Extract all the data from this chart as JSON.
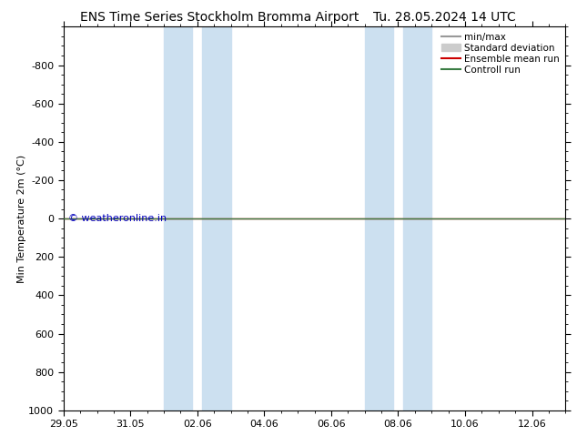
{
  "title_left": "ENS Time Series Stockholm Bromma Airport",
  "title_right": "Tu. 28.05.2024 14 UTC",
  "ylabel": "Min Temperature 2m (°C)",
  "ylim": [
    -1000,
    1000
  ],
  "yticks": [
    -800,
    -600,
    -400,
    -200,
    0,
    200,
    400,
    600,
    800,
    1000
  ],
  "xtick_labels": [
    "29.05",
    "31.05",
    "02.06",
    "04.06",
    "06.06",
    "08.06",
    "10.06",
    "12.06"
  ],
  "xtick_positions": [
    0,
    2,
    4,
    6,
    8,
    10,
    12,
    14
  ],
  "xlim": [
    0,
    15
  ],
  "background_color": "#ffffff",
  "plot_bg_color": "#ffffff",
  "blue_shade_color": "#cce0f0",
  "blue_shade_alpha": 1.0,
  "shaded_regions": [
    [
      3.0,
      3.85
    ],
    [
      4.15,
      5.0
    ],
    [
      9.0,
      9.85
    ],
    [
      10.15,
      11.0
    ]
  ],
  "control_run_y": 0,
  "control_run_color": "#3a7d44",
  "ensemble_mean_color": "#cc0000",
  "watermark_text": "© weatheronline.in",
  "watermark_color": "#0000bb",
  "watermark_fontsize": 8,
  "legend_items": [
    {
      "label": "min/max",
      "color": "#999999",
      "lw": 1.5,
      "type": "line"
    },
    {
      "label": "Standard deviation",
      "color": "#cccccc",
      "lw": 8,
      "type": "patch"
    },
    {
      "label": "Ensemble mean run",
      "color": "#cc0000",
      "lw": 1.5,
      "type": "line"
    },
    {
      "label": "Controll run",
      "color": "#3a7d44",
      "lw": 1.5,
      "type": "line"
    }
  ],
  "title_fontsize": 10,
  "axis_label_fontsize": 8,
  "tick_fontsize": 8,
  "legend_fontsize": 7.5
}
